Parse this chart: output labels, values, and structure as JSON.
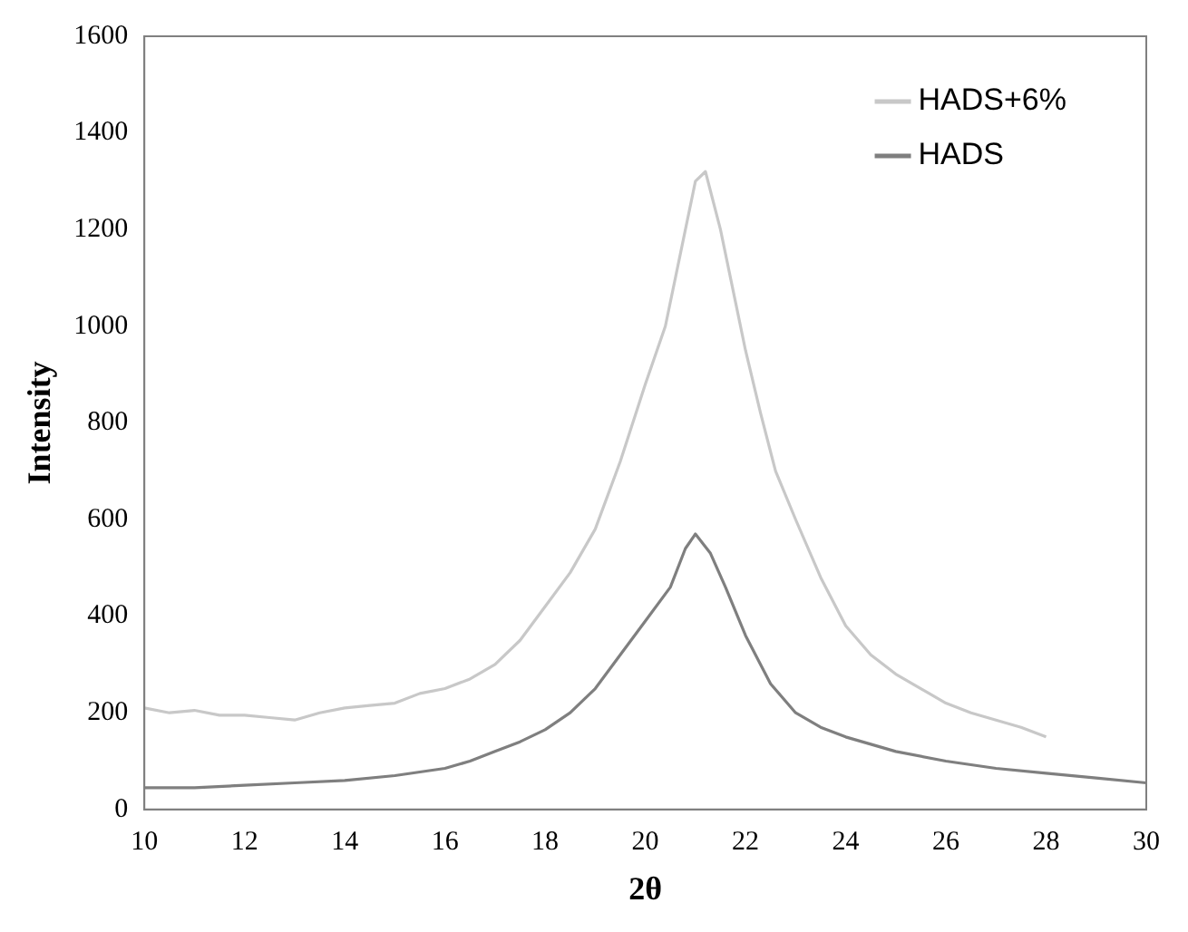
{
  "chart_data": {
    "type": "line",
    "xlabel": "2θ",
    "ylabel": "Intensity",
    "xlim": [
      10,
      30
    ],
    "xticks": [
      10,
      12,
      14,
      16,
      18,
      20,
      22,
      24,
      26,
      28,
      30
    ],
    "ylim": [
      0,
      1600
    ],
    "yticks": [
      0,
      200,
      400,
      600,
      800,
      1000,
      1200,
      1400,
      1600
    ],
    "grid": false,
    "legend": "top right",
    "marker": "none",
    "line_style": "solid",
    "series": [
      {
        "name": "HADS+6%",
        "color": "#c8c8c8",
        "x": [
          10,
          10.5,
          11,
          11.5,
          12,
          12.5,
          13,
          13.5,
          14,
          14.5,
          15,
          15.5,
          16,
          16.5,
          17,
          17.5,
          18,
          18.5,
          19,
          19.5,
          20,
          20.4,
          20.7,
          21,
          21.2,
          21.5,
          21.8,
          22,
          22.3,
          22.6,
          23,
          23.5,
          24,
          24.5,
          25,
          25.5,
          26,
          26.5,
          27,
          27.5,
          28
        ],
        "values": [
          210,
          200,
          205,
          195,
          195,
          190,
          185,
          200,
          210,
          215,
          220,
          240,
          250,
          270,
          300,
          350,
          420,
          490,
          580,
          720,
          880,
          1000,
          1150,
          1300,
          1320,
          1200,
          1050,
          950,
          820,
          700,
          600,
          480,
          380,
          320,
          280,
          250,
          220,
          200,
          185,
          170,
          150
        ]
      },
      {
        "name": "HADS",
        "color": "#7f7f7f",
        "x": [
          10,
          11,
          12,
          13,
          14,
          15,
          16,
          16.5,
          17,
          17.5,
          18,
          18.5,
          19,
          19.5,
          20,
          20.5,
          20.8,
          21,
          21.3,
          21.6,
          22,
          22.5,
          23,
          23.5,
          24,
          25,
          26,
          27,
          28,
          29,
          30
        ],
        "values": [
          45,
          45,
          50,
          55,
          60,
          70,
          85,
          100,
          120,
          140,
          165,
          200,
          250,
          320,
          390,
          460,
          540,
          570,
          530,
          460,
          360,
          260,
          200,
          170,
          150,
          120,
          100,
          85,
          75,
          65,
          55
        ]
      }
    ]
  }
}
